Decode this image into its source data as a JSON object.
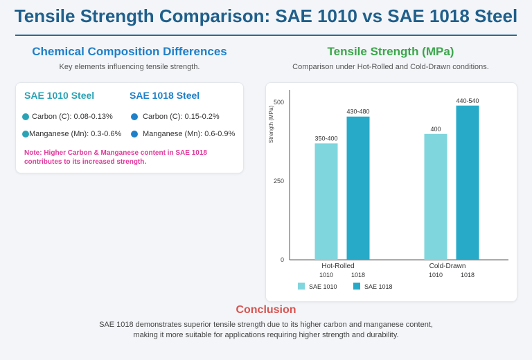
{
  "title": "Tensile Strength Comparison: SAE 1010 vs SAE 1018 Steel",
  "composition": {
    "title": "Chemical Composition Differences",
    "subtitle": "Key elements influencing tensile strength.",
    "col1": {
      "header": "SAE 1010 Steel",
      "color": "#2aa3b5",
      "items": [
        "Carbon (C): 0.08-0.13%",
        "Manganese (Mn): 0.3-0.6%"
      ]
    },
    "col2": {
      "header": "SAE 1018 Steel",
      "color": "#1f80c8",
      "items": [
        "Carbon (C): 0.15-0.2%",
        "Manganese (Mn): 0.6-0.9%"
      ]
    },
    "note": "Note: Higher Carbon & Manganese content in SAE 1018 contributes to its increased strength."
  },
  "tensile": {
    "title": "Tensile Strength (MPa)",
    "subtitle": "Comparison under Hot-Rolled and Cold-Drawn conditions."
  },
  "chart_data": {
    "type": "bar",
    "categories": [
      "Hot-Rolled",
      "Cold-Drawn"
    ],
    "sub_labels": [
      "1010",
      "1018"
    ],
    "series": [
      {
        "name": "SAE 1010",
        "color": "#7fd6dd",
        "values": [
          370,
          400
        ],
        "labels": [
          "350-400",
          "400"
        ]
      },
      {
        "name": "SAE 1018",
        "color": "#26aac8",
        "values": [
          455,
          490
        ],
        "labels": [
          "430-480",
          "440-540"
        ]
      }
    ],
    "ylabel": "Strength (MPa)",
    "yticks": [
      0,
      250,
      500
    ],
    "ylim": [
      0,
      540
    ],
    "legend_position": "bottom-left"
  },
  "conclusion": {
    "title": "Conclusion",
    "line1": "SAE 1018 demonstrates superior tensile strength due to its higher carbon and manganese content,",
    "line2": "making it more suitable for applications requiring higher strength and durability."
  }
}
